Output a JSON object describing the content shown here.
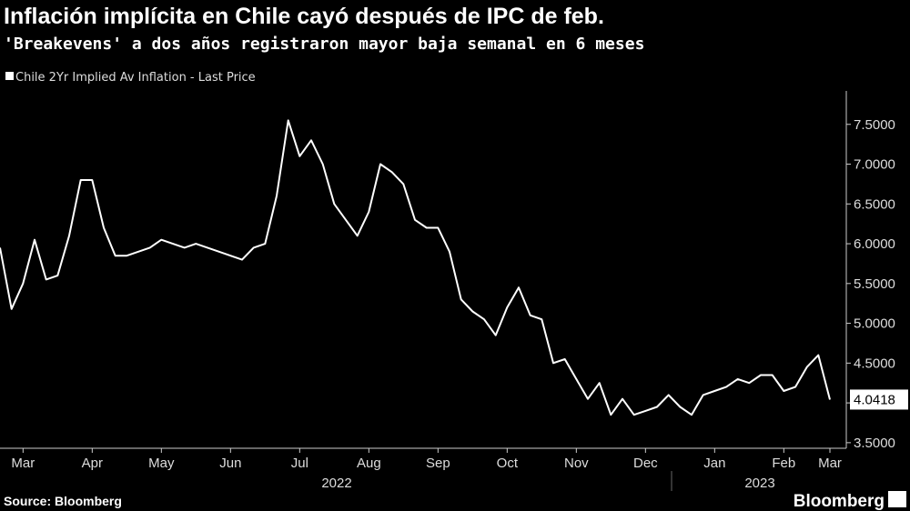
{
  "chart_data": {
    "type": "line",
    "title": "Inflación implícita en Chile cayó después de IPC de feb.",
    "subtitle": "'Breakevens' a dos años registraron mayor baja semanal en 6 meses",
    "categories": [
      null,
      null,
      "Mar",
      null,
      null,
      null,
      null,
      null,
      "Apr",
      null,
      null,
      null,
      null,
      null,
      "May",
      null,
      null,
      null,
      null,
      null,
      "Jun",
      null,
      null,
      null,
      null,
      null,
      "Jul",
      null,
      null,
      null,
      null,
      null,
      "Aug",
      null,
      null,
      null,
      null,
      null,
      "Sep",
      null,
      null,
      null,
      null,
      null,
      "Oct",
      null,
      null,
      null,
      null,
      null,
      "Nov",
      null,
      null,
      null,
      null,
      null,
      "Dec",
      null,
      null,
      null,
      null,
      null,
      "Jan",
      null,
      null,
      null,
      null,
      null,
      "Feb",
      null,
      null,
      null,
      "Mar"
    ],
    "year_labels": [
      "2022",
      "2023"
    ],
    "series": [
      {
        "name": "Chile 2Yr Implied Av Inflation - Last Price",
        "color": "#ffffff",
        "values": [
          5.95,
          5.18,
          5.5,
          6.05,
          5.55,
          5.6,
          6.1,
          6.8,
          6.8,
          6.2,
          5.85,
          5.85,
          5.9,
          5.95,
          6.05,
          6.0,
          5.95,
          6.0,
          5.95,
          5.9,
          5.85,
          5.8,
          5.95,
          6.0,
          6.6,
          7.55,
          7.1,
          7.3,
          7.0,
          6.5,
          6.3,
          6.1,
          6.4,
          7.0,
          6.9,
          6.75,
          6.3,
          6.2,
          6.2,
          5.9,
          5.3,
          5.15,
          5.05,
          4.85,
          5.2,
          5.45,
          5.1,
          5.05,
          4.5,
          4.55,
          4.3,
          4.05,
          4.25,
          3.85,
          4.05,
          3.85,
          3.9,
          3.95,
          4.1,
          3.95,
          3.85,
          4.1,
          4.15,
          4.2,
          4.3,
          4.25,
          4.35,
          4.35,
          4.15,
          4.2,
          4.45,
          4.6,
          4.0418
        ]
      }
    ],
    "ylim": [
      3.43,
      7.92
    ],
    "yticks": [
      {
        "value": 3.5,
        "label": "3.5000"
      },
      {
        "value": 4.0,
        "label": "4.0000"
      },
      {
        "value": 4.5,
        "label": "4.5000"
      },
      {
        "value": 5.0,
        "label": "5.0000"
      },
      {
        "value": 5.5,
        "label": "5.5000"
      },
      {
        "value": 6.0,
        "label": "6.0000"
      },
      {
        "value": 6.5,
        "label": "6.5000"
      },
      {
        "value": 7.0,
        "label": "7.0000"
      },
      {
        "value": 7.5,
        "label": "7.5000"
      }
    ],
    "grid": false,
    "source": "Source: Bloomberg",
    "brand": "Bloomberg"
  }
}
